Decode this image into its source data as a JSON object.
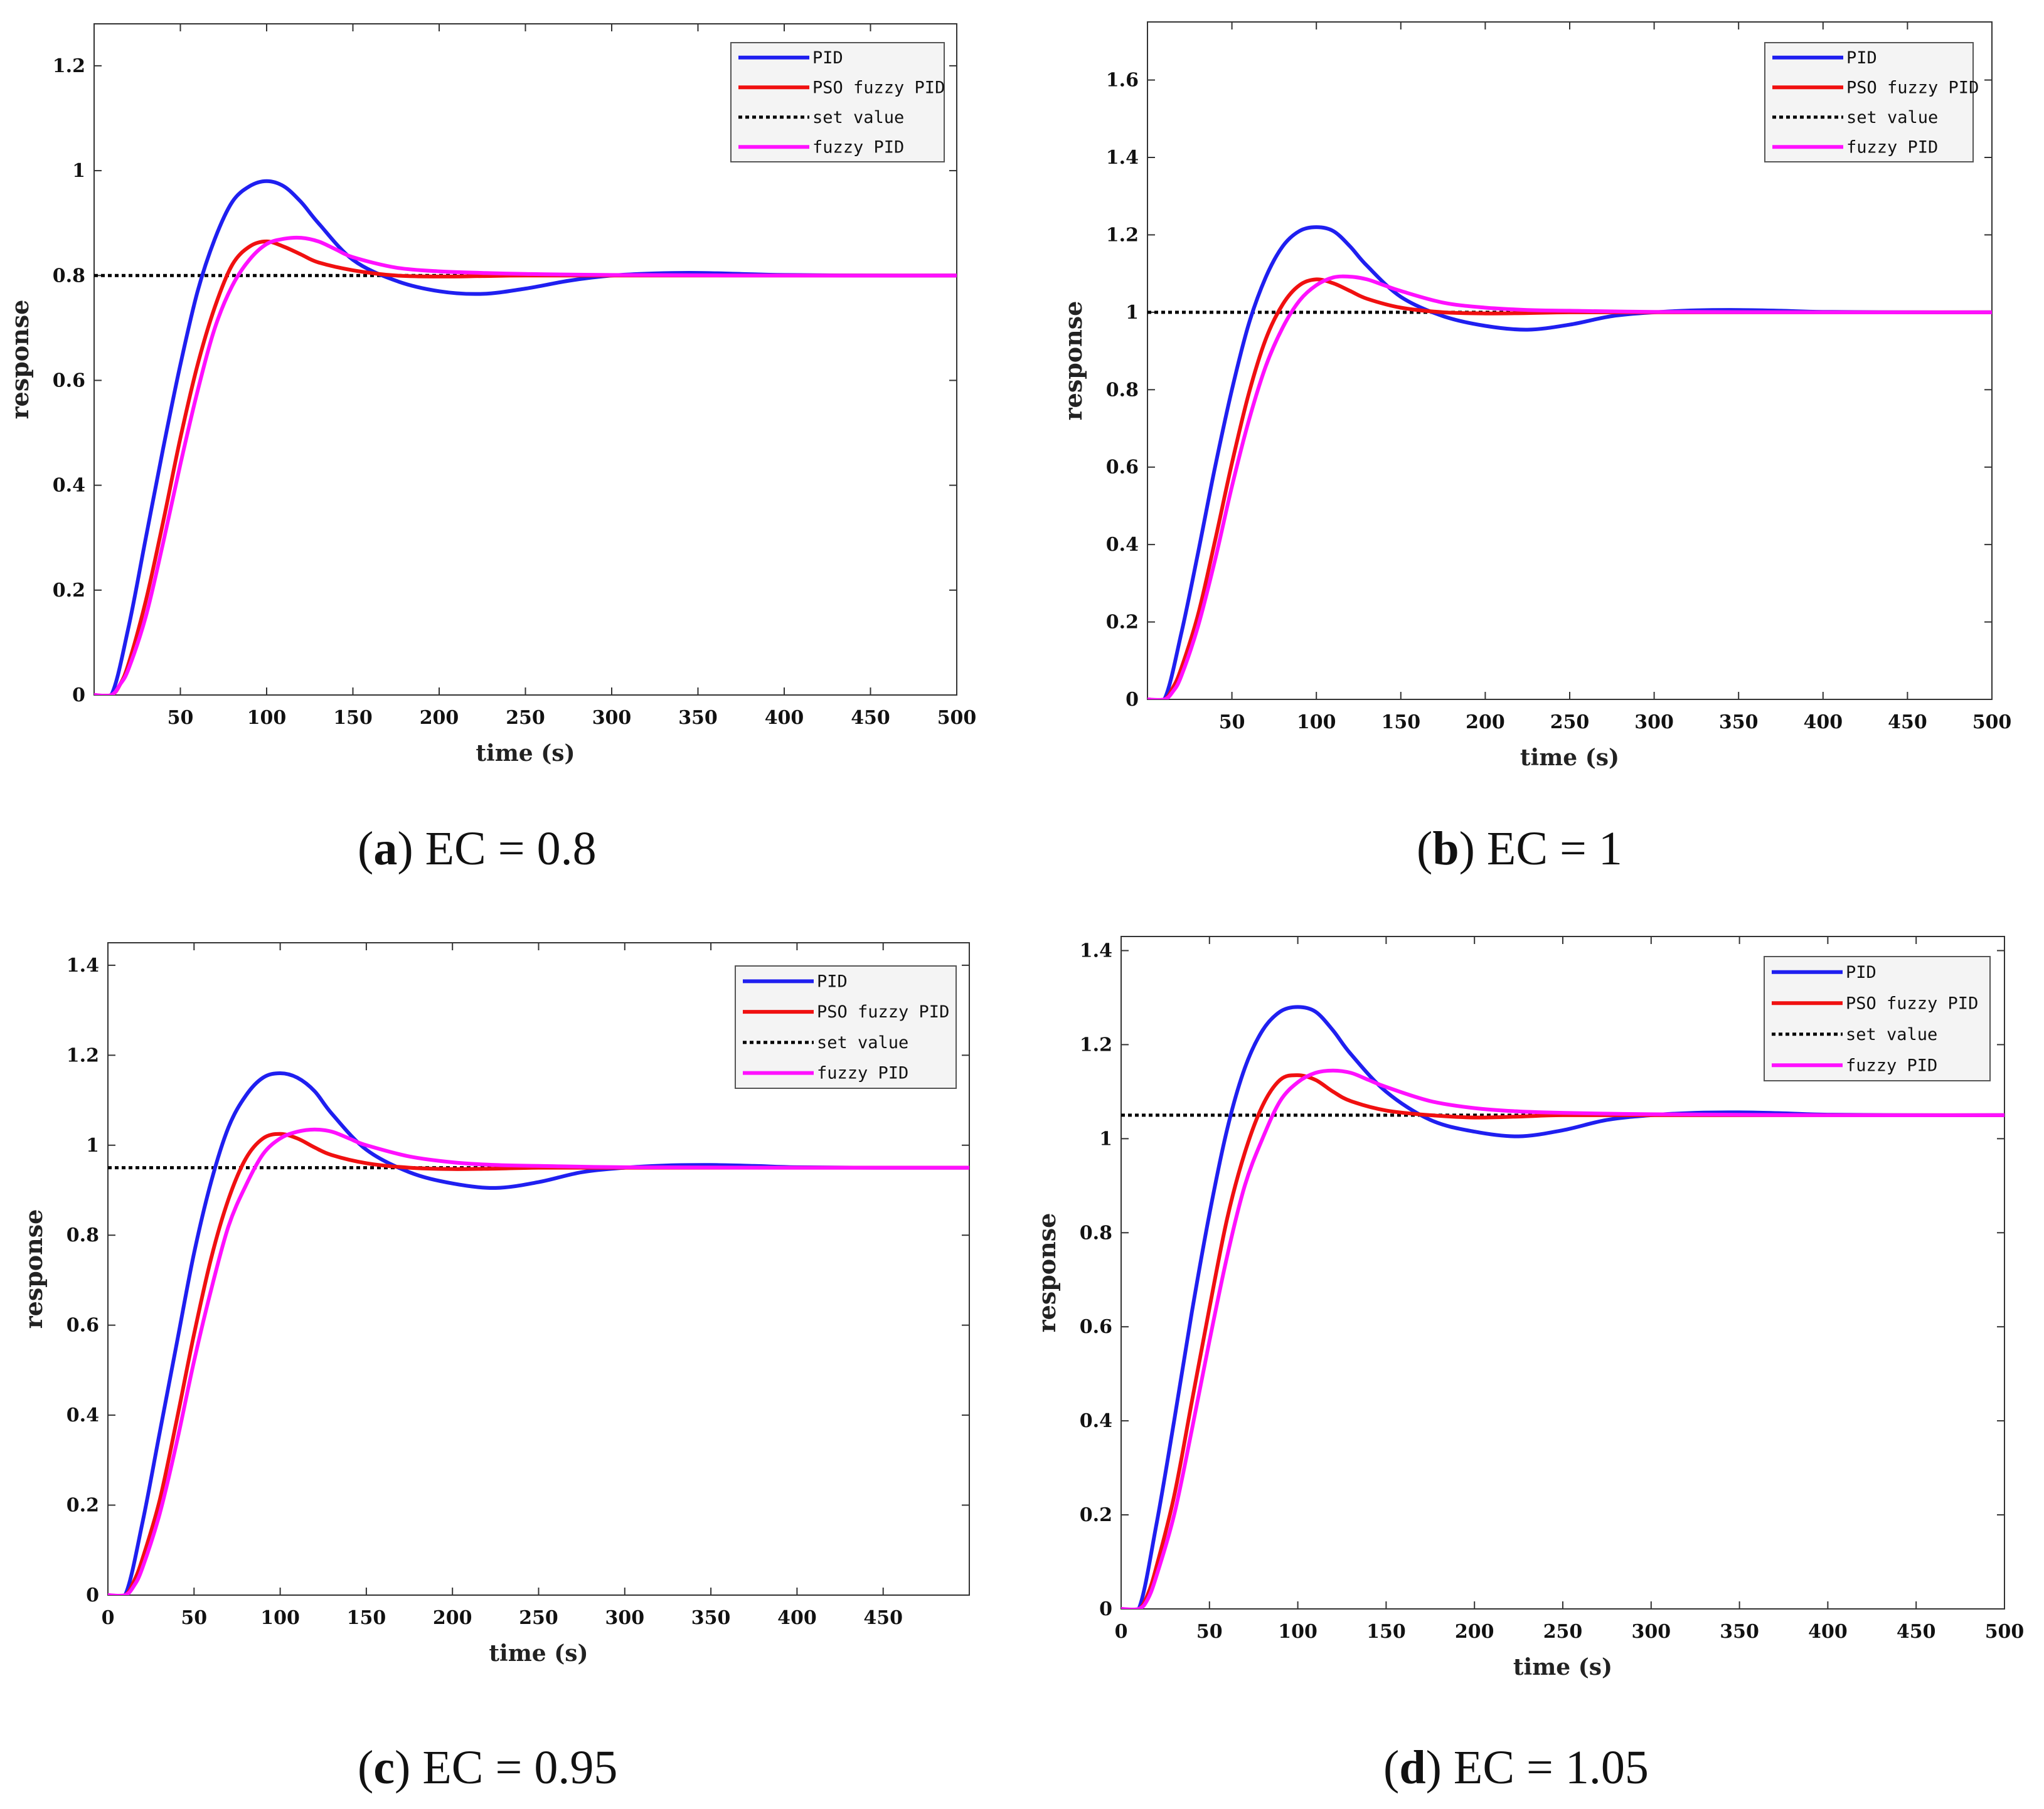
{
  "series_style": {
    "PID": {
      "color": "#1f1ff0",
      "dash": ""
    },
    "PSO fuzzy PID": {
      "color": "#f01010",
      "dash": ""
    },
    "set value": {
      "color": "#000000",
      "dash": "dotted"
    },
    "fuzzy PID": {
      "color": "#ff10ff",
      "dash": ""
    }
  },
  "chart_data": [
    {
      "id": "a",
      "type": "line",
      "caption_letter": "a",
      "caption_text": " EC = 0.8",
      "xlabel": "time  (s)",
      "ylabel": "response",
      "xlim": [
        0,
        500
      ],
      "ylim": [
        0,
        1.28
      ],
      "xticks": [
        50,
        100,
        150,
        200,
        250,
        300,
        350,
        400,
        450,
        500
      ],
      "xtick_labels": [
        "50",
        "100",
        "150",
        "200",
        "250",
        "300",
        "350",
        "400",
        "450",
        "500"
      ],
      "yticks": [
        0,
        0.2,
        0.4,
        0.6,
        0.8,
        1,
        1.2
      ],
      "ytick_labels": [
        "0",
        "0.2",
        "0.4",
        "0.6",
        "0.8",
        "1",
        "1.2"
      ],
      "legend": [
        "PID",
        "PSO fuzzy PID",
        "set value",
        "fuzzy PID"
      ],
      "legend_position": "top-right",
      "series": [
        {
          "name": "PID",
          "x": [
            0,
            10,
            20,
            30,
            40,
            50,
            60,
            70,
            80,
            90,
            100,
            110,
            120,
            130,
            150,
            175,
            200,
            225,
            250,
            275,
            300,
            325,
            350,
            375,
            400,
            450,
            500
          ],
          "y": [
            0,
            0,
            0.13,
            0.3,
            0.47,
            0.63,
            0.77,
            0.87,
            0.94,
            0.97,
            0.98,
            0.97,
            0.94,
            0.9,
            0.83,
            0.79,
            0.77,
            0.765,
            0.775,
            0.79,
            0.8,
            0.804,
            0.805,
            0.803,
            0.801,
            0.8,
            0.8
          ]
        },
        {
          "name": "PSO fuzzy PID",
          "x": [
            0,
            10,
            15,
            20,
            30,
            40,
            50,
            60,
            70,
            80,
            90,
            100,
            110,
            120,
            130,
            150,
            175,
            200,
            225,
            250,
            300,
            400,
            500
          ],
          "y": [
            0,
            0,
            0.02,
            0.06,
            0.18,
            0.33,
            0.49,
            0.63,
            0.74,
            0.82,
            0.855,
            0.865,
            0.855,
            0.84,
            0.825,
            0.81,
            0.8,
            0.798,
            0.799,
            0.8,
            0.8,
            0.8,
            0.8
          ]
        },
        {
          "name": "set value",
          "x": [
            0,
            500
          ],
          "y": [
            0.8,
            0.8
          ]
        },
        {
          "name": "fuzzy PID",
          "x": [
            0,
            10,
            15,
            20,
            30,
            40,
            50,
            60,
            70,
            80,
            90,
            100,
            110,
            120,
            130,
            140,
            150,
            175,
            200,
            225,
            250,
            300,
            400,
            500
          ],
          "y": [
            0,
            0,
            0.02,
            0.05,
            0.15,
            0.29,
            0.44,
            0.58,
            0.7,
            0.78,
            0.83,
            0.86,
            0.87,
            0.872,
            0.865,
            0.85,
            0.835,
            0.815,
            0.808,
            0.805,
            0.803,
            0.801,
            0.8,
            0.8
          ]
        }
      ]
    },
    {
      "id": "b",
      "type": "line",
      "caption_letter": "b",
      "caption_text": " EC = 1",
      "xlabel": "time (s)",
      "ylabel": "response",
      "xlim": [
        0,
        500
      ],
      "ylim": [
        0,
        1.75
      ],
      "xticks": [
        50,
        100,
        150,
        200,
        250,
        300,
        350,
        400,
        450,
        500
      ],
      "xtick_labels": [
        "50",
        "100",
        "150",
        "200",
        "250",
        "300",
        "350",
        "400",
        "450",
        "500"
      ],
      "yticks": [
        0,
        0.2,
        0.4,
        0.6,
        0.8,
        1,
        1.2,
        1.4,
        1.6
      ],
      "ytick_labels": [
        "0",
        "0.2",
        "0.4",
        "0.6",
        "0.8",
        "1",
        "1.2",
        "1.4",
        "1.6"
      ],
      "legend": [
        "PID",
        "PSO fuzzy PID",
        "set value",
        "fuzzy PID"
      ],
      "legend_position": "top-right",
      "series": [
        {
          "name": "PID",
          "x": [
            0,
            10,
            20,
            30,
            40,
            50,
            60,
            70,
            80,
            90,
            100,
            110,
            120,
            130,
            150,
            175,
            200,
            225,
            250,
            275,
            300,
            325,
            350,
            375,
            400,
            450,
            500
          ],
          "y": [
            0,
            0,
            0.17,
            0.38,
            0.6,
            0.8,
            0.97,
            1.09,
            1.17,
            1.21,
            1.22,
            1.21,
            1.17,
            1.12,
            1.04,
            0.99,
            0.965,
            0.955,
            0.968,
            0.99,
            1.0,
            1.005,
            1.006,
            1.004,
            1.001,
            1.0,
            1.0
          ]
        },
        {
          "name": "PSO fuzzy PID",
          "x": [
            0,
            10,
            15,
            20,
            30,
            40,
            50,
            60,
            70,
            80,
            90,
            100,
            110,
            120,
            130,
            150,
            175,
            200,
            225,
            250,
            300,
            400,
            500
          ],
          "y": [
            0,
            0,
            0.03,
            0.08,
            0.22,
            0.41,
            0.61,
            0.79,
            0.93,
            1.02,
            1.07,
            1.085,
            1.075,
            1.055,
            1.035,
            1.012,
            1.0,
            0.997,
            0.998,
            1.0,
            1.0,
            1.0,
            1.0
          ]
        },
        {
          "name": "set value",
          "x": [
            0,
            500
          ],
          "y": [
            1.0,
            1.0
          ]
        },
        {
          "name": "fuzzy PID",
          "x": [
            0,
            10,
            15,
            20,
            30,
            40,
            50,
            60,
            70,
            80,
            90,
            100,
            110,
            120,
            130,
            140,
            150,
            175,
            200,
            225,
            250,
            300,
            400,
            500
          ],
          "y": [
            0,
            0,
            0.02,
            0.06,
            0.19,
            0.36,
            0.55,
            0.72,
            0.86,
            0.96,
            1.03,
            1.07,
            1.09,
            1.092,
            1.085,
            1.07,
            1.055,
            1.025,
            1.012,
            1.006,
            1.004,
            1.001,
            1.0,
            1.0
          ]
        }
      ]
    },
    {
      "id": "c",
      "type": "line",
      "caption_letter": "c",
      "caption_text": " EC = 0.95",
      "xlabel": "time (s)",
      "ylabel": "response",
      "xlim": [
        0,
        500
      ],
      "ylim": [
        0,
        1.45
      ],
      "xticks": [
        0,
        50,
        100,
        150,
        200,
        250,
        300,
        350,
        400,
        450
      ],
      "xtick_labels": [
        "0",
        "50",
        "100",
        "150",
        "200",
        "250",
        "300",
        "350",
        "400",
        "450"
      ],
      "yticks": [
        0,
        0.2,
        0.4,
        0.6,
        0.8,
        1,
        1.2,
        1.4
      ],
      "ytick_labels": [
        "0",
        "0.2",
        "0.4",
        "0.6",
        "0.8",
        "1",
        "1.2",
        "1.4"
      ],
      "legend": [
        "PID",
        "PSO fuzzy PID",
        "set value",
        "fuzzy PID"
      ],
      "legend_position": "top-right",
      "series": [
        {
          "name": "PID",
          "x": [
            0,
            10,
            20,
            30,
            40,
            50,
            60,
            70,
            80,
            90,
            100,
            110,
            120,
            130,
            150,
            175,
            200,
            225,
            250,
            275,
            300,
            325,
            350,
            375,
            400,
            450,
            500
          ],
          "y": [
            0,
            0,
            0.16,
            0.36,
            0.56,
            0.76,
            0.92,
            1.04,
            1.11,
            1.15,
            1.16,
            1.15,
            1.12,
            1.07,
            0.99,
            0.94,
            0.915,
            0.905,
            0.918,
            0.94,
            0.95,
            0.955,
            0.956,
            0.954,
            0.951,
            0.95,
            0.95
          ]
        },
        {
          "name": "PSO fuzzy PID",
          "x": [
            0,
            10,
            15,
            20,
            30,
            40,
            50,
            60,
            70,
            80,
            90,
            100,
            110,
            120,
            130,
            150,
            175,
            200,
            225,
            250,
            300,
            400,
            500
          ],
          "y": [
            0,
            0,
            0.03,
            0.08,
            0.21,
            0.39,
            0.58,
            0.75,
            0.88,
            0.97,
            1.015,
            1.025,
            1.015,
            0.995,
            0.978,
            0.96,
            0.95,
            0.947,
            0.948,
            0.95,
            0.95,
            0.95,
            0.95
          ]
        },
        {
          "name": "set value",
          "x": [
            0,
            500
          ],
          "y": [
            0.95,
            0.95
          ]
        },
        {
          "name": "fuzzy PID",
          "x": [
            0,
            10,
            15,
            20,
            30,
            40,
            50,
            60,
            70,
            80,
            90,
            100,
            110,
            120,
            130,
            140,
            150,
            175,
            200,
            225,
            250,
            300,
            400,
            500
          ],
          "y": [
            0,
            0,
            0.02,
            0.06,
            0.18,
            0.34,
            0.52,
            0.68,
            0.82,
            0.91,
            0.98,
            1.015,
            1.03,
            1.035,
            1.03,
            1.015,
            1.0,
            0.975,
            0.962,
            0.956,
            0.954,
            0.951,
            0.95,
            0.95
          ]
        }
      ]
    },
    {
      "id": "d",
      "type": "line",
      "caption_letter": "d",
      "caption_text": " EC = 1.05",
      "xlabel": "time  (s)",
      "ylabel": "response",
      "xlim": [
        0,
        500
      ],
      "ylim": [
        0,
        1.43
      ],
      "xticks": [
        0,
        50,
        100,
        150,
        200,
        250,
        300,
        350,
        400,
        450,
        500
      ],
      "xtick_labels": [
        "0",
        "50",
        "100",
        "150",
        "200",
        "250",
        "300",
        "350",
        "400",
        "450",
        "500"
      ],
      "yticks": [
        0,
        0.2,
        0.4,
        0.6,
        0.8,
        1,
        1.2,
        1.4
      ],
      "ytick_labels": [
        "0",
        "0.2",
        "0.4",
        "0.6",
        "0.8",
        "1",
        "1.2",
        "1.4"
      ],
      "legend": [
        "PID",
        "PSO fuzzy PID",
        "set value",
        "fuzzy PID"
      ],
      "legend_position": "top-right",
      "series": [
        {
          "name": "PID",
          "x": [
            0,
            10,
            20,
            30,
            40,
            50,
            60,
            70,
            80,
            90,
            100,
            110,
            120,
            130,
            150,
            175,
            200,
            225,
            250,
            275,
            300,
            325,
            350,
            375,
            400,
            450,
            500
          ],
          "y": [
            0,
            0,
            0.18,
            0.4,
            0.63,
            0.84,
            1.02,
            1.15,
            1.23,
            1.27,
            1.28,
            1.27,
            1.23,
            1.18,
            1.1,
            1.04,
            1.015,
            1.005,
            1.018,
            1.04,
            1.05,
            1.055,
            1.056,
            1.054,
            1.051,
            1.05,
            1.05
          ]
        },
        {
          "name": "PSO fuzzy PID",
          "x": [
            0,
            10,
            15,
            20,
            30,
            40,
            50,
            60,
            70,
            80,
            90,
            100,
            110,
            120,
            130,
            150,
            175,
            200,
            225,
            250,
            300,
            400,
            500
          ],
          "y": [
            0,
            0,
            0.03,
            0.09,
            0.24,
            0.44,
            0.64,
            0.83,
            0.97,
            1.07,
            1.125,
            1.135,
            1.125,
            1.1,
            1.08,
            1.06,
            1.05,
            1.045,
            1.047,
            1.05,
            1.05,
            1.05,
            1.05
          ]
        },
        {
          "name": "set value",
          "x": [
            0,
            500
          ],
          "y": [
            1.05,
            1.05
          ]
        },
        {
          "name": "fuzzy PID",
          "x": [
            0,
            10,
            15,
            20,
            30,
            40,
            50,
            60,
            70,
            80,
            90,
            100,
            110,
            120,
            130,
            140,
            150,
            175,
            200,
            225,
            250,
            300,
            400,
            500
          ],
          "y": [
            0,
            0,
            0.02,
            0.07,
            0.2,
            0.38,
            0.57,
            0.75,
            0.9,
            1.0,
            1.08,
            1.12,
            1.14,
            1.145,
            1.14,
            1.125,
            1.11,
            1.08,
            1.065,
            1.058,
            1.055,
            1.052,
            1.05,
            1.05
          ]
        }
      ]
    }
  ]
}
